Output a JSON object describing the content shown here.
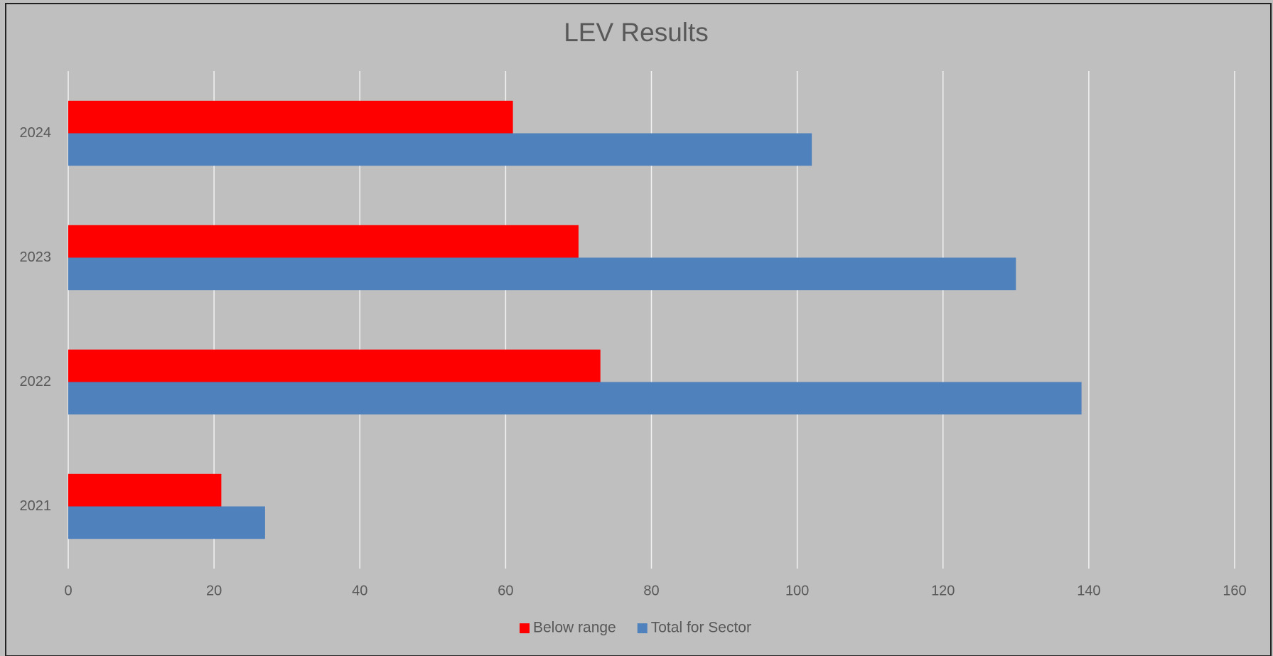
{
  "chart_data": {
    "type": "barh",
    "title": "LEV Results",
    "categories": [
      "2021",
      "2022",
      "2023",
      "2024"
    ],
    "series": [
      {
        "name": "Below range",
        "color": "#ff0000",
        "values": [
          21,
          73,
          70,
          61
        ]
      },
      {
        "name": "Total for Sector",
        "color": "#4f81bd",
        "values": [
          27,
          139,
          130,
          102
        ]
      }
    ],
    "xlim": [
      0,
      160
    ],
    "xticks": [
      0,
      20,
      40,
      60,
      80,
      100,
      120,
      140,
      160
    ],
    "grid": true,
    "legend": "bottom"
  }
}
